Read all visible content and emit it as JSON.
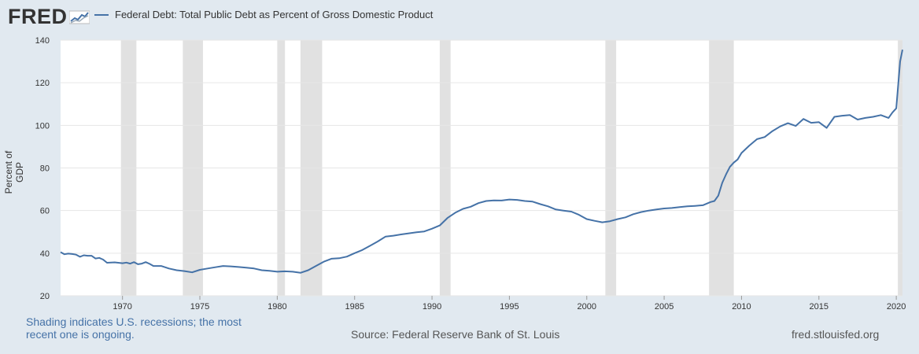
{
  "header": {
    "logo_text": "FRED",
    "logo_icon": "line-graph-icon",
    "legend_label": "Federal Debt: Total Public Debt as Percent of Gross Domestic Product"
  },
  "footer": {
    "note": "Shading indicates U.S. recessions; the most recent one is ongoing.",
    "source": "Source: Federal Reserve Bank of St. Louis",
    "url": "fred.stlouisfed.org"
  },
  "colors": {
    "background": "#e1e9f0",
    "plot_area": "#ffffff",
    "line": "#4572a7",
    "recession": "#e1e1e1",
    "grid": "#e6e6e6"
  },
  "chart_data": {
    "type": "line",
    "title": "",
    "xlabel": "",
    "ylabel": "Percent of GDP",
    "xlim": [
      1966.0,
      2020.4
    ],
    "ylim": [
      20,
      140
    ],
    "grid": "horizontal",
    "legend_placement": "top-left",
    "x_ticks": [
      1970,
      1975,
      1980,
      1985,
      1990,
      1995,
      2000,
      2005,
      2010,
      2015,
      2020
    ],
    "y_ticks": [
      20,
      40,
      60,
      80,
      100,
      120,
      140
    ],
    "recessions": [
      [
        1969.9,
        1970.9
      ],
      [
        1973.9,
        1975.2
      ],
      [
        1980.0,
        1980.5
      ],
      [
        1981.5,
        1982.9
      ],
      [
        1990.5,
        1991.2
      ],
      [
        2001.2,
        2001.9
      ],
      [
        2007.9,
        2009.5
      ],
      [
        2020.1,
        2020.4
      ]
    ],
    "series": [
      {
        "name": "Federal Debt: Total Public Debt as Percent of Gross Domestic Product",
        "x": [
          1966.0,
          1966.25,
          1966.5,
          1966.75,
          1967.0,
          1967.25,
          1967.5,
          1967.75,
          1968.0,
          1968.25,
          1968.5,
          1968.75,
          1969.0,
          1969.5,
          1970.0,
          1970.25,
          1970.5,
          1970.75,
          1971.0,
          1971.25,
          1971.5,
          1971.75,
          1972.0,
          1972.5,
          1973.0,
          1973.5,
          1974.0,
          1974.5,
          1975.0,
          1975.5,
          1976.0,
          1976.5,
          1977.0,
          1977.5,
          1978.0,
          1978.5,
          1979.0,
          1979.5,
          1980.0,
          1980.5,
          1981.0,
          1981.5,
          1982.0,
          1982.5,
          1983.0,
          1983.5,
          1984.0,
          1984.5,
          1985.0,
          1985.5,
          1986.0,
          1986.5,
          1987.0,
          1987.5,
          1988.0,
          1988.5,
          1989.0,
          1989.5,
          1990.0,
          1990.5,
          1991.0,
          1991.5,
          1992.0,
          1992.5,
          1993.0,
          1993.5,
          1994.0,
          1994.5,
          1995.0,
          1995.5,
          1996.0,
          1996.5,
          1997.0,
          1997.5,
          1998.0,
          1998.5,
          1999.0,
          1999.5,
          2000.0,
          2000.5,
          2001.0,
          2001.5,
          2002.0,
          2002.5,
          2003.0,
          2003.5,
          2004.0,
          2004.5,
          2005.0,
          2005.5,
          2006.0,
          2006.5,
          2007.0,
          2007.5,
          2008.0,
          2008.25,
          2008.5,
          2008.75,
          2009.0,
          2009.25,
          2009.5,
          2009.75,
          2010.0,
          2010.5,
          2011.0,
          2011.5,
          2012.0,
          2012.5,
          2013.0,
          2013.5,
          2014.0,
          2014.5,
          2015.0,
          2015.5,
          2016.0,
          2016.5,
          2017.0,
          2017.5,
          2018.0,
          2018.5,
          2019.0,
          2019.5,
          2019.75,
          2020.0,
          2020.25,
          2020.4
        ],
        "values": [
          40.5,
          39.5,
          39.8,
          39.6,
          39.3,
          38.3,
          39.0,
          38.8,
          38.8,
          37.5,
          37.8,
          37.0,
          35.5,
          35.7,
          35.3,
          35.6,
          35.1,
          35.8,
          34.8,
          35.1,
          35.8,
          35.0,
          34.0,
          34.0,
          32.8,
          32.0,
          31.6,
          31.0,
          32.2,
          32.8,
          33.4,
          34.0,
          33.8,
          33.5,
          33.2,
          32.8,
          32.0,
          31.7,
          31.3,
          31.5,
          31.3,
          30.8,
          32.0,
          34.0,
          36.0,
          37.4,
          37.6,
          38.4,
          40.0,
          41.5,
          43.5,
          45.5,
          47.8,
          48.2,
          48.8,
          49.3,
          49.8,
          50.2,
          51.5,
          53.0,
          56.5,
          59.0,
          60.8,
          61.8,
          63.5,
          64.5,
          64.8,
          64.7,
          65.2,
          65.0,
          64.5,
          64.2,
          63.0,
          62.0,
          60.5,
          60.0,
          59.5,
          58.0,
          56.0,
          55.2,
          54.5,
          55.0,
          56.0,
          56.8,
          58.3,
          59.3,
          60.0,
          60.5,
          61.0,
          61.2,
          61.6,
          62.0,
          62.2,
          62.5,
          64.0,
          64.5,
          67.0,
          73.0,
          77.0,
          80.5,
          82.5,
          84.0,
          87.0,
          90.5,
          93.5,
          94.5,
          97.3,
          99.5,
          101.0,
          99.7,
          103.0,
          101.2,
          101.5,
          98.8,
          104.0,
          104.5,
          104.8,
          102.7,
          103.5,
          104.0,
          104.8,
          103.5,
          106.0,
          108.0,
          130.0,
          135.5
        ]
      }
    ]
  }
}
